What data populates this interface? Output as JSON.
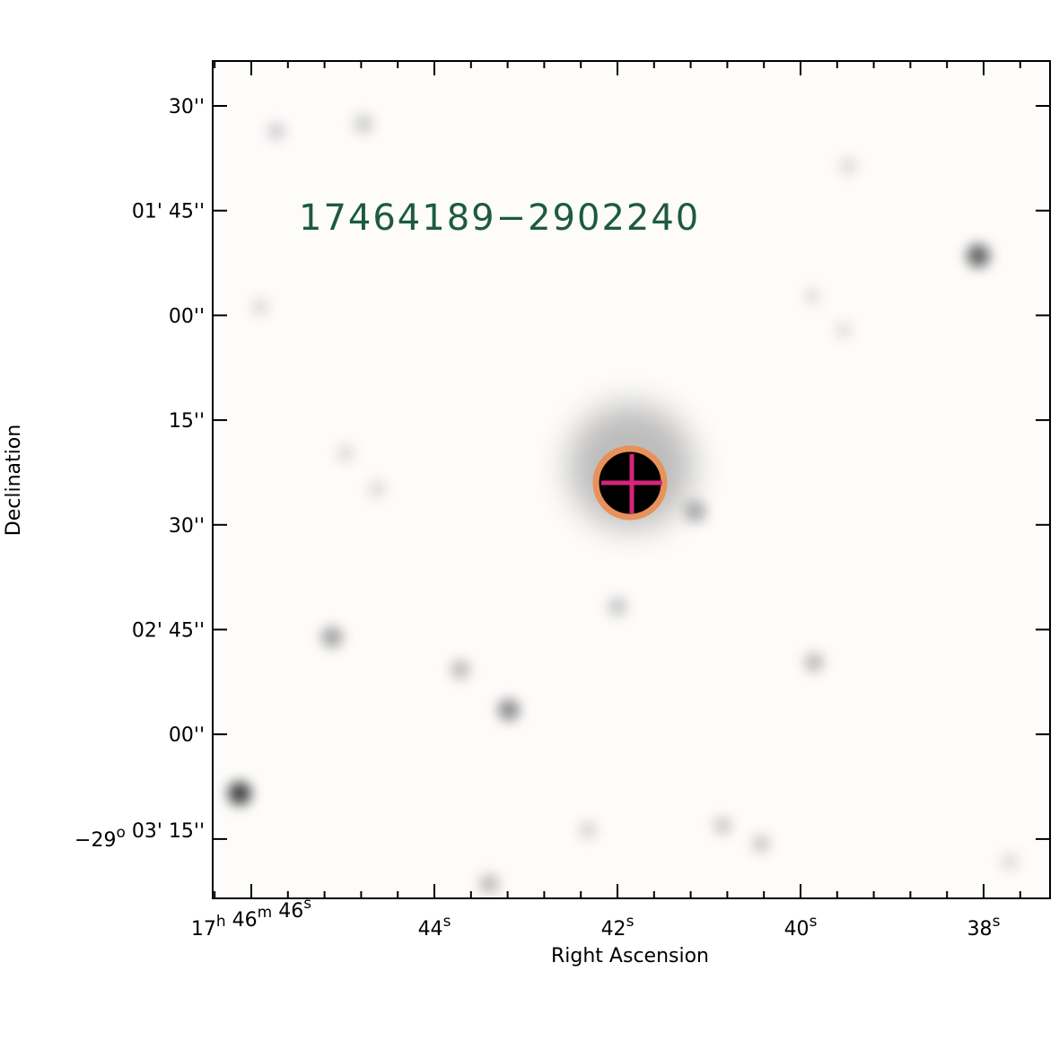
{
  "figure": {
    "source_label": "17464189−2902240",
    "x_axis": {
      "title": "Right Ascension",
      "ticks": [
        [
          {
            "text": "17",
            "sup": "h"
          },
          {
            "text": " 46",
            "sup": "m"
          },
          {
            "text": " 46",
            "sup": "s"
          }
        ],
        [
          {
            "text": "44",
            "sup": "s"
          }
        ],
        [
          {
            "text": "42",
            "sup": "s"
          }
        ],
        [
          {
            "text": "40",
            "sup": "s"
          }
        ],
        [
          {
            "text": "38",
            "sup": "s"
          }
        ]
      ]
    },
    "y_axis": {
      "title": "Declination",
      "ticks": [
        [
          {
            "text": "30''"
          }
        ],
        [
          {
            "text": "01' 45''"
          }
        ],
        [
          {
            "text": "00''"
          }
        ],
        [
          {
            "text": "15''"
          }
        ],
        [
          {
            "text": "30''"
          }
        ],
        [
          {
            "text": "02' 45''"
          }
        ],
        [
          {
            "text": "00''"
          }
        ],
        [
          {
            "text": "−29",
            "sup": "o"
          },
          {
            "text": " 03' 15''"
          }
        ]
      ]
    }
  }
}
